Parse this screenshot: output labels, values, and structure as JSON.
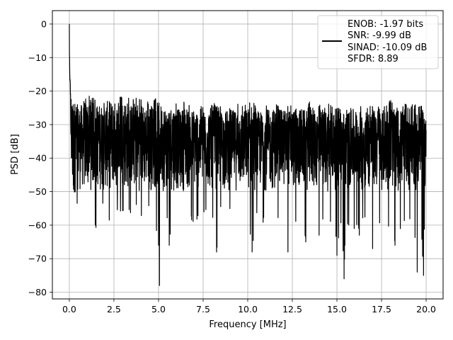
{
  "chart_data": {
    "type": "line",
    "title": "",
    "xlabel": "Frequency [MHz]",
    "ylabel": "PSD [dB]",
    "xlim": [
      -0.95,
      20.95
    ],
    "ylim": [
      -82,
      4
    ],
    "x_ticks": [
      0.0,
      2.5,
      5.0,
      7.5,
      10.0,
      12.5,
      15.0,
      17.5,
      20.0
    ],
    "x_tick_labels": [
      "0.0",
      "2.5",
      "5.0",
      "7.5",
      "10.0",
      "12.5",
      "15.0",
      "17.5",
      "20.0"
    ],
    "y_ticks": [
      0,
      -10,
      -20,
      -30,
      -40,
      -50,
      -60,
      -70,
      -80
    ],
    "y_tick_labels": [
      "0",
      "−10",
      "−20",
      "−30",
      "−40",
      "−50",
      "−60",
      "−70",
      "−80"
    ],
    "grid": true,
    "legend_position": "top-right",
    "series": [
      {
        "color": "#000000",
        "legend_lines": [
          "ENOB: -1.97 bits",
          "SNR: -9.99 dB",
          "SINAD: -10.09 dB",
          "SFDR: 8.89"
        ],
        "noise_floor_upper_db": -25,
        "noise_floor_lower_db": -47,
        "x": [
          0.0,
          0.02,
          0.04,
          0.06,
          0.08,
          0.1,
          0.15,
          0.2,
          0.3,
          0.45,
          0.6,
          0.75,
          1.0,
          1.25,
          1.5,
          1.75,
          2.0,
          2.25,
          2.5,
          2.75,
          3.0,
          3.25,
          3.5,
          3.75,
          4.0,
          4.25,
          4.5,
          4.75,
          5.0,
          5.05,
          5.25,
          5.5,
          5.6,
          5.75,
          6.0,
          6.25,
          6.5,
          6.75,
          7.0,
          7.25,
          7.5,
          7.75,
          8.0,
          8.25,
          8.5,
          8.75,
          9.0,
          9.25,
          9.5,
          9.75,
          10.0,
          10.25,
          10.5,
          10.75,
          11.0,
          11.25,
          11.5,
          11.75,
          12.0,
          12.25,
          12.5,
          12.75,
          13.0,
          13.25,
          13.5,
          13.75,
          14.0,
          14.25,
          14.5,
          14.75,
          15.0,
          15.25,
          15.4,
          15.5,
          15.75,
          16.0,
          16.25,
          16.5,
          16.75,
          17.0,
          17.25,
          17.5,
          17.75,
          18.0,
          18.25,
          18.5,
          18.75,
          19.0,
          19.25,
          19.5,
          19.7,
          19.85,
          20.0
        ],
        "upper_db": [
          0,
          -8,
          -15,
          -17,
          -19,
          -20,
          -22,
          -23,
          -23,
          -24,
          -24,
          -24,
          -23,
          -23,
          -24,
          -24,
          -23,
          -23,
          -23,
          -24,
          -22,
          -23,
          -24,
          -23,
          -24,
          -24,
          -24,
          -24,
          -23,
          -24,
          -24,
          -25,
          -25,
          -24,
          -25,
          -26,
          -24,
          -26,
          -25,
          -25,
          -26,
          -25,
          -25,
          -24,
          -26,
          -26,
          -25,
          -26,
          -25,
          -26,
          -25,
          -24,
          -26,
          -26,
          -25,
          -26,
          -25,
          -26,
          -25,
          -26,
          -25,
          -26,
          -25,
          -26,
          -24,
          -26,
          -25,
          -26,
          -25,
          -26,
          -25,
          -26,
          -26,
          -25,
          -26,
          -25,
          -26,
          -26,
          -25,
          -26,
          -25,
          -26,
          -25,
          -24,
          -26,
          -25,
          -26,
          -24,
          -25,
          -26,
          -25,
          -26,
          -28
        ],
        "lower_db": [
          -46,
          -35,
          -40,
          -42,
          -45,
          -47,
          -50,
          -54,
          -52,
          -55,
          -61,
          -57,
          -55,
          -54,
          -62,
          -56,
          -54,
          -60,
          -55,
          -58,
          -56,
          -55,
          -57,
          -56,
          -60,
          -55,
          -57,
          -58,
          -66,
          -78,
          -60,
          -59,
          -66,
          -57,
          -58,
          -59,
          -57,
          -60,
          -59,
          -61,
          -56,
          -59,
          -58,
          -68,
          -57,
          -61,
          -58,
          -60,
          -62,
          -59,
          -60,
          -68,
          -58,
          -60,
          -59,
          -57,
          -62,
          -60,
          -60,
          -68,
          -60,
          -62,
          -59,
          -65,
          -58,
          -60,
          -63,
          -60,
          -62,
          -59,
          -69,
          -60,
          -76,
          -60,
          -61,
          -62,
          -63,
          -59,
          -61,
          -67,
          -60,
          -62,
          -62,
          -59,
          -66,
          -61,
          -62,
          -58,
          -61,
          -74,
          -62,
          -75,
          -45
        ]
      }
    ]
  }
}
